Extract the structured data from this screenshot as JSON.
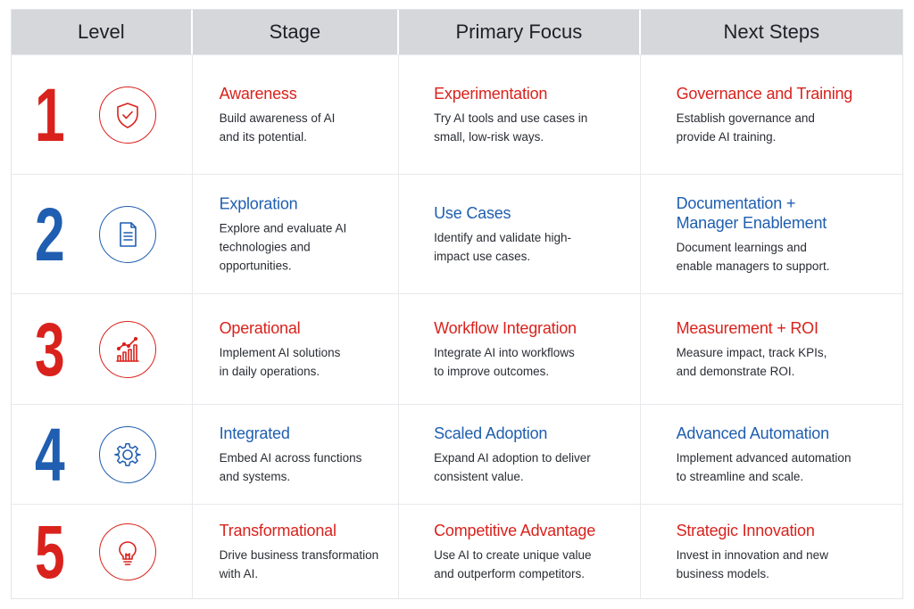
{
  "header": {
    "level": "Level",
    "stage": "Stage",
    "primary_focus": "Primary Focus",
    "next_steps": "Next Steps"
  },
  "colors": {
    "red": "#d9221c",
    "blue": "#1f5eb0",
    "header_bg": "#d5d7db"
  },
  "rows": [
    {
      "level": "1",
      "color": "red",
      "icon": "shield-check-icon",
      "stage": {
        "title": "Awareness",
        "desc": "Build awareness of AI\nand its potential."
      },
      "focus": {
        "title": "Experimentation",
        "desc": "Try AI tools and use cases in\nsmall, low-risk ways."
      },
      "next": {
        "title": "Governance and Training",
        "desc": "Establish governance and\nprovide AI training."
      }
    },
    {
      "level": "2",
      "color": "blue",
      "icon": "document-icon",
      "stage": {
        "title": "Exploration",
        "desc": "Explore and evaluate AI\ntechnologies and opportunities."
      },
      "focus": {
        "title": "Use Cases",
        "desc": "Identify and validate high-\nimpact use cases."
      },
      "next": {
        "title": "Documentation +\nManager Enablement",
        "desc": "Document learnings and\nenable managers to support."
      }
    },
    {
      "level": "3",
      "color": "red",
      "icon": "growth-chart-icon",
      "stage": {
        "title": "Operational",
        "desc": "Implement AI solutions\nin daily operations."
      },
      "focus": {
        "title": "Workflow Integration",
        "desc": "Integrate AI into workflows\nto improve outcomes."
      },
      "next": {
        "title": "Measurement + ROI",
        "desc": "Measure impact, track KPIs,\nand demonstrate ROI."
      }
    },
    {
      "level": "4",
      "color": "blue",
      "icon": "gear-icon",
      "stage": {
        "title": "Integrated",
        "desc": "Embed AI across functions\nand systems."
      },
      "focus": {
        "title": "Scaled Adoption",
        "desc": "Expand AI adoption to deliver\nconsistent value."
      },
      "next": {
        "title": "Advanced Automation",
        "desc": "Implement advanced automation\nto streamline and scale."
      }
    },
    {
      "level": "5",
      "color": "red",
      "icon": "lightbulb-icon",
      "stage": {
        "title": "Transformational",
        "desc": "Drive business transformation\nwith AI."
      },
      "focus": {
        "title": "Competitive Advantage",
        "desc": "Use AI to create unique value\nand outperform competitors."
      },
      "next": {
        "title": "Strategic Innovation",
        "desc": "Invest in innovation and new\nbusiness models."
      }
    }
  ]
}
